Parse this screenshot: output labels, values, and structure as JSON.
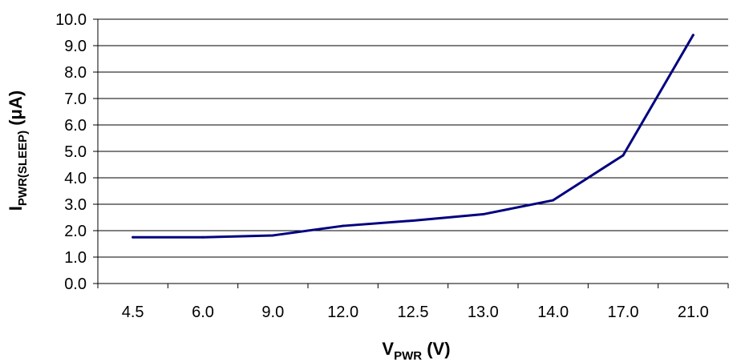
{
  "chart_data": {
    "type": "line",
    "title": "",
    "xlabel": {
      "main": "V",
      "sub": "PWR",
      "suffix": " (V)"
    },
    "ylabel": {
      "main": "I",
      "sub": "PWR(SLEEP)",
      "suffix": " (μA)"
    },
    "categories": [
      "4.5",
      "6.0",
      "9.0",
      "12.0",
      "12.5",
      "13.0",
      "14.0",
      "17.0",
      "21.0"
    ],
    "series": [
      {
        "values": [
          1.75,
          1.75,
          1.82,
          2.18,
          2.38,
          2.62,
          3.15,
          4.85,
          9.4
        ]
      }
    ],
    "ylim": [
      0,
      10
    ],
    "y_ticks": [
      "0.0",
      "1.0",
      "2.0",
      "3.0",
      "4.0",
      "5.0",
      "6.0",
      "7.0",
      "8.0",
      "9.0",
      "10.0"
    ],
    "grid": {
      "horizontal": true,
      "vertical": false
    },
    "legend": "none",
    "line_color": "#000080",
    "grid_color": "#000000"
  }
}
